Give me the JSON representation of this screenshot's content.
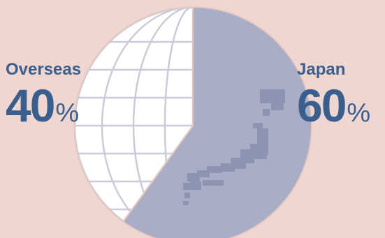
{
  "colors": {
    "background": "#f0d6d0",
    "globe_fill": "#ffffff",
    "globe_grid": "#c9ccd8",
    "japan_slice": "#a9aec6",
    "japan_map": "#8d93b0",
    "label_text": "#3a5f8e"
  },
  "chart_data": {
    "type": "pie",
    "slices": [
      {
        "name": "Japan",
        "value": 60,
        "label": "60",
        "unit": "%",
        "color": "#a9aec6"
      },
      {
        "name": "Overseas",
        "value": 40,
        "label": "40",
        "unit": "%",
        "color": "#ffffff"
      }
    ],
    "start": "12 o'clock",
    "direction": "clockwise",
    "decorations": [
      "globe-grid-on-overseas-slice",
      "japan-map-silhouette-on-japan-slice"
    ]
  }
}
